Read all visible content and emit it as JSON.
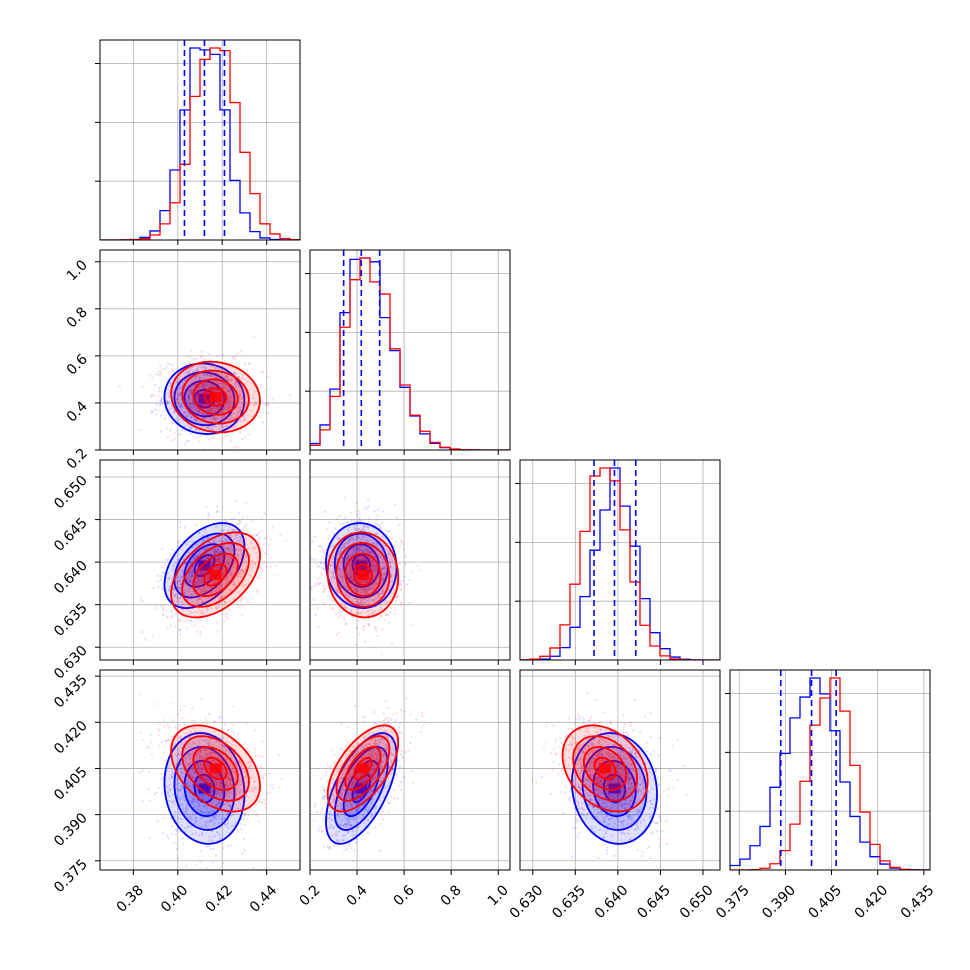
{
  "chart_data": {
    "type": "corner",
    "grid": true,
    "colors": {
      "blue": "#0000ff",
      "red": "#ff0000"
    },
    "params": [
      {
        "range": [
          0.365,
          0.455
        ],
        "ticks": [
          0.38,
          0.4,
          0.42,
          0.44
        ],
        "tick_labels": [
          "0.38",
          "0.40",
          "0.42",
          "0.44"
        ],
        "quantiles_blue": [
          0.403,
          0.412,
          0.421
        ]
      },
      {
        "range": [
          0.2,
          1.05
        ],
        "ticks": [
          0.2,
          0.4,
          0.6,
          0.8,
          1.0
        ],
        "tick_labels": [
          "0.2",
          "0.4",
          "0.6",
          "0.8",
          "1.0"
        ],
        "quantiles_blue": [
          0.343,
          0.418,
          0.496
        ]
      },
      {
        "range": [
          0.6285,
          0.652
        ],
        "ticks": [
          0.63,
          0.635,
          0.64,
          0.645,
          0.65
        ],
        "tick_labels": [
          "0.630",
          "0.635",
          "0.640",
          "0.645",
          "0.650"
        ],
        "quantiles_blue": [
          0.6372,
          0.6396,
          0.6421
        ]
      },
      {
        "range": [
          0.372,
          0.437
        ],
        "ticks": [
          0.375,
          0.39,
          0.405,
          0.42,
          0.435
        ],
        "tick_labels": [
          "0.375",
          "0.390",
          "0.405",
          "0.420",
          "0.435"
        ],
        "quantiles_blue": [
          0.3885,
          0.3985,
          0.4065
        ]
      }
    ],
    "series": [
      {
        "color": "blue",
        "means": [
          0.412,
          0.418,
          0.6396,
          0.3985
        ],
        "sds": [
          0.009,
          0.075,
          0.0025,
          0.009
        ]
      },
      {
        "color": "red",
        "means": [
          0.417,
          0.425,
          0.6385,
          0.405
        ],
        "sds": [
          0.01,
          0.075,
          0.0025,
          0.007
        ]
      }
    ]
  }
}
